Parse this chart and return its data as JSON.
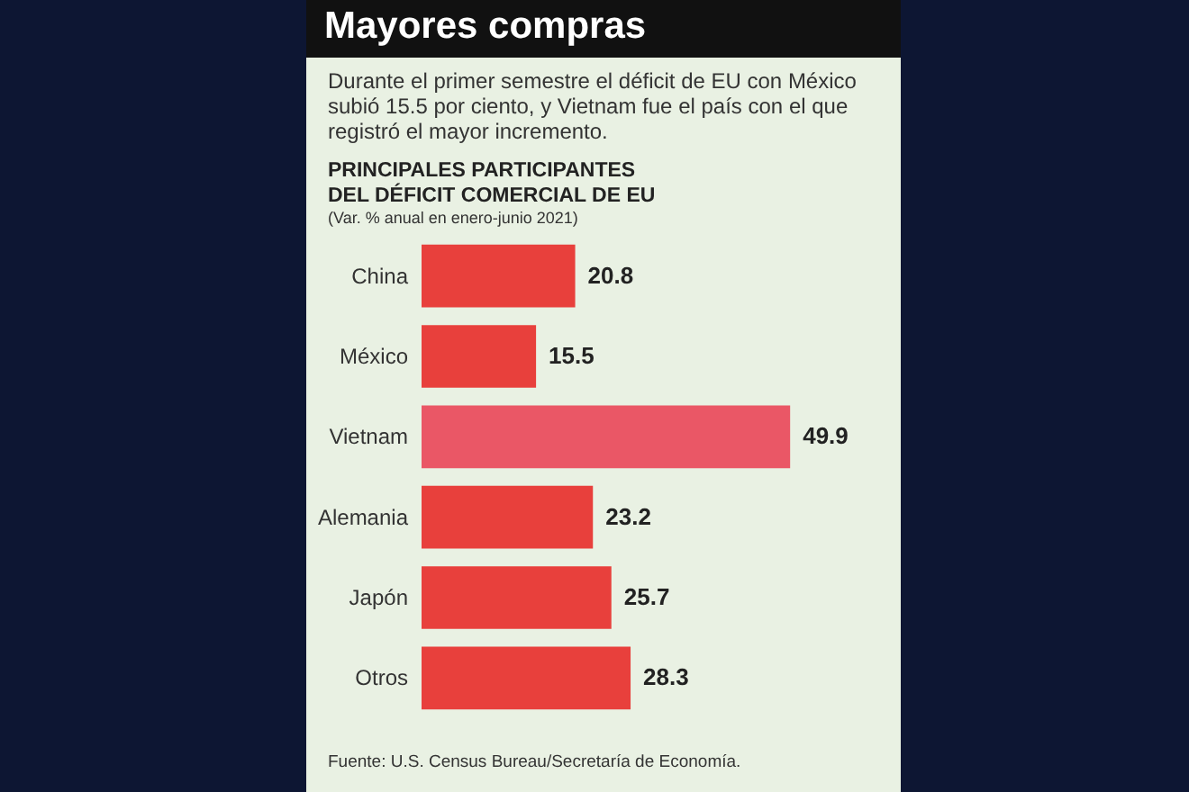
{
  "chart_data": {
    "type": "bar",
    "orientation": "horizontal",
    "title": "Mayores compras",
    "subtitle": "Durante el primer semestre el déficit de EU con México subió 15.5 por ciento, y Vietnam fue el país con el que registró el mayor incremento.",
    "annotations": [
      "PRINCIPALES PARTICIPANTES DEL DÉFICIT COMERCIAL DE EU",
      "(Var. % anual en enero-junio 2021)",
      "Fuente: U.S. Census Bureau/Secretaría de Economía."
    ],
    "categories": [
      "China",
      "México",
      "Vietnam",
      "Alemania",
      "Japón",
      "Otros"
    ],
    "values": [
      20.8,
      15.5,
      49.9,
      23.2,
      25.7,
      28.3
    ],
    "colors": [
      "#e8403c",
      "#e8403c",
      "#ea5766",
      "#e8403c",
      "#e8403c",
      "#e8403c"
    ],
    "data_labels": true
  }
}
